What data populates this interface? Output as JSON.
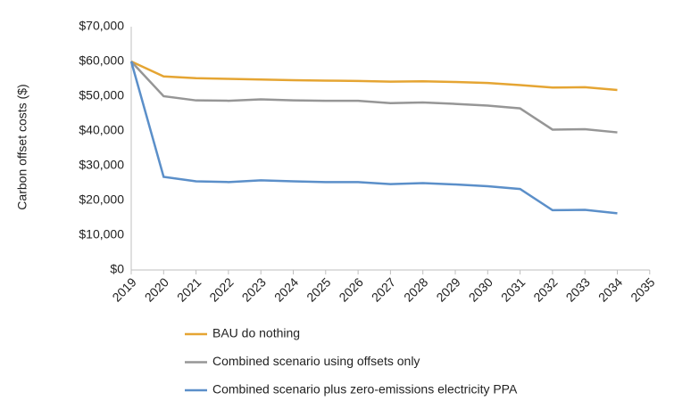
{
  "chart_data": {
    "type": "line",
    "y_label": "Carbon offset costs ($)",
    "categories": [
      "2019",
      "2020",
      "2021",
      "2022",
      "2023",
      "2024",
      "2025",
      "2026",
      "2027",
      "2028",
      "2029",
      "2030",
      "2031",
      "2032",
      "2033",
      "2034",
      "2035"
    ],
    "series": [
      {
        "name": "BAU do nothing",
        "color": "#e5a533",
        "values": [
          60000,
          55700,
          55200,
          55000,
          54800,
          54600,
          54500,
          54400,
          54200,
          54300,
          54100,
          53800,
          53200,
          52500,
          52600,
          51800,
          null
        ]
      },
      {
        "name": "Combined scenario using offsets only",
        "color": "#969696",
        "values": [
          60000,
          50000,
          48800,
          48700,
          49100,
          48800,
          48700,
          48700,
          48000,
          48200,
          47800,
          47300,
          46500,
          40400,
          40500,
          39600,
          null
        ]
      },
      {
        "name": "Combined scenario plus zero-emissions electricity PPA",
        "color": "#5b8fc9",
        "values": [
          60000,
          26800,
          25500,
          25300,
          25800,
          25500,
          25300,
          25300,
          24700,
          25000,
          24600,
          24100,
          23300,
          17200,
          17300,
          16300,
          null
        ]
      }
    ],
    "ylim": [
      0,
      70000
    ],
    "yticks": [
      {
        "value": 0,
        "label": "$0"
      },
      {
        "value": 10000,
        "label": "$10,000"
      },
      {
        "value": 20000,
        "label": "$20,000"
      },
      {
        "value": 30000,
        "label": "$30,000"
      },
      {
        "value": 40000,
        "label": "$40,000"
      },
      {
        "value": 50000,
        "label": "$50,000"
      },
      {
        "value": 60000,
        "label": "$60,000"
      },
      {
        "value": 70000,
        "label": "$70,000"
      }
    ],
    "grid": false,
    "legend": "bottom"
  }
}
